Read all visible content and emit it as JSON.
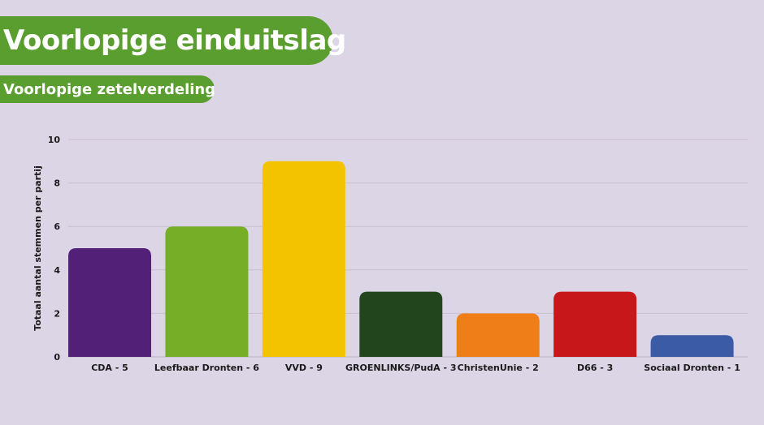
{
  "header": {
    "title": "Voorlopige einduitslag",
    "subtitle": "Voorlopige zetelverdeling"
  },
  "colors": {
    "background": "#dcd5e6",
    "header_green": "#5a9e2f"
  },
  "chart_data": {
    "type": "bar",
    "categories": [
      "CDA - 5",
      "Leefbaar Dronten - 6",
      "VVD - 9",
      "GROENLINKS/PudA - 3",
      "ChristenUnie - 2",
      "D66 - 3",
      "Sociaal Dronten - 1"
    ],
    "values": [
      5,
      6,
      9,
      3,
      2,
      3,
      1
    ],
    "colors": [
      "#532077",
      "#76ae28",
      "#f4c300",
      "#22451d",
      "#ef7d18",
      "#c8171b",
      "#3b5ba7"
    ],
    "ylabel": "Totaal aantal stemmen per partij",
    "xlabel": "",
    "ylim": [
      0,
      10
    ],
    "yticks": [
      0,
      2,
      4,
      6,
      8,
      10
    ],
    "grid": true
  }
}
